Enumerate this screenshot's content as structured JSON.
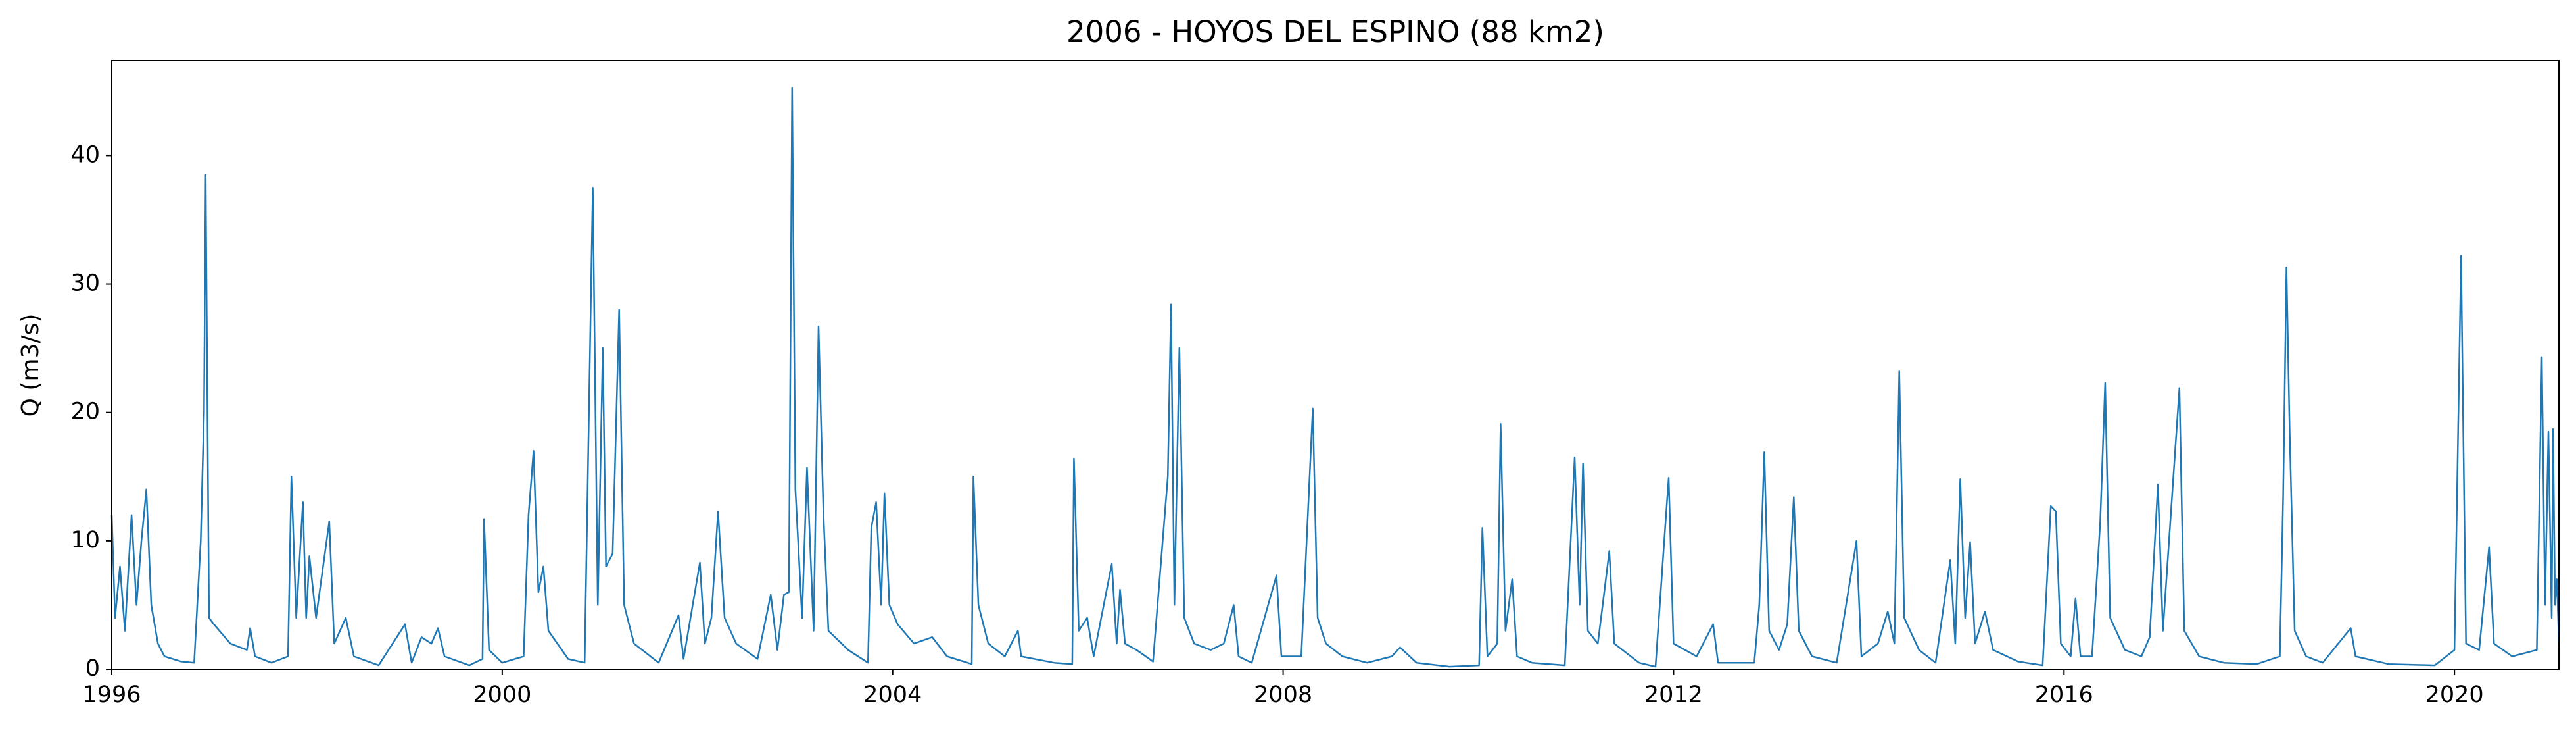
{
  "chart_data": {
    "type": "line",
    "title": "2006 - HOYOS DEL ESPINO (88 km2)",
    "y_label": "Q (m3/s)",
    "color": "#1f77b4",
    "xlim": [
      1996,
      2021.07
    ],
    "xticks": [
      1996,
      2000,
      2004,
      2008,
      2012,
      2016,
      2020
    ],
    "ylim": [
      0,
      47.4
    ],
    "yticks": [
      0,
      10,
      20,
      30,
      40
    ],
    "x": [
      1996,
      1996.034,
      1996.084,
      1996.135,
      1996.203,
      1996.253,
      1996.304,
      1996.354,
      1996.405,
      1996.473,
      1996.54,
      1996.709,
      1996.844,
      1996.911,
      1996.945,
      1996.962,
      1996.996,
      1997.046,
      1997.215,
      1997.384,
      1997.418,
      1997.468,
      1997.637,
      1997.806,
      1997.84,
      1997.89,
      1997.958,
      1997.992,
      1998.025,
      1998.093,
      1998.228,
      1998.279,
      1998.397,
      1998.481,
      1998.734,
      1999.004,
      1999.072,
      1999.173,
      1999.274,
      1999.342,
      1999.409,
      1999.662,
      1999.798,
      1999.814,
      1999.865,
      2000,
      2000.219,
      2000.27,
      2000.321,
      2000.371,
      2000.422,
      2000.473,
      2000.675,
      2000.844,
      2000.928,
      2000.979,
      2001.03,
      2001.063,
      2001.131,
      2001.198,
      2001.249,
      2001.35,
      2001.603,
      2001.806,
      2001.857,
      2002.025,
      2002.076,
      2002.143,
      2002.211,
      2002.278,
      2002.397,
      2002.616,
      2002.751,
      2002.819,
      2002.886,
      2002.937,
      2002.97,
      2003.004,
      2003.072,
      2003.122,
      2003.19,
      2003.241,
      2003.291,
      2003.342,
      2003.544,
      2003.747,
      2003.781,
      2003.831,
      2003.882,
      2003.916,
      2003.966,
      2004.051,
      2004.219,
      2004.405,
      2004.557,
      2004.81,
      2004.827,
      2004.878,
      2004.979,
      2005.148,
      2005.283,
      2005.316,
      2005.654,
      2005.84,
      2005.857,
      2005.907,
      2005.992,
      2006.059,
      2006.245,
      2006.295,
      2006.329,
      2006.38,
      2006.498,
      2006.667,
      2006.819,
      2006.852,
      2006.886,
      2006.937,
      2006.987,
      2007.089,
      2007.257,
      2007.392,
      2007.443,
      2007.494,
      2007.544,
      2007.679,
      2007.932,
      2007.983,
      2008.186,
      2008.304,
      2008.354,
      2008.439,
      2008.608,
      2008.861,
      2009.114,
      2009.198,
      2009.367,
      2009.705,
      2010.008,
      2010.042,
      2010.093,
      2010.194,
      2010.228,
      2010.278,
      2010.346,
      2010.397,
      2010.549,
      2010.886,
      2010.987,
      2011.038,
      2011.072,
      2011.122,
      2011.224,
      2011.274,
      2011.342,
      2011.393,
      2011.646,
      2011.815,
      2011.916,
      2011.95,
      2012,
      2012.236,
      2012.405,
      2012.456,
      2012.827,
      2012.878,
      2012.929,
      2012.979,
      2013.08,
      2013.165,
      2013.232,
      2013.283,
      2013.418,
      2013.671,
      2013.874,
      2013.924,
      2014.093,
      2014.194,
      2014.262,
      2014.312,
      2014.363,
      2014.515,
      2014.684,
      2014.835,
      2014.886,
      2014.937,
      2014.987,
      2015.038,
      2015.089,
      2015.19,
      2015.274,
      2015.527,
      2015.781,
      2015.865,
      2015.916,
      2015.967,
      2016.068,
      2016.118,
      2016.169,
      2016.287,
      2016.371,
      2016.422,
      2016.473,
      2016.624,
      2016.793,
      2016.878,
      2016.962,
      2017.013,
      2017.182,
      2017.232,
      2017.384,
      2017.637,
      2017.975,
      2018.211,
      2018.245,
      2018.279,
      2018.312,
      2018.363,
      2018.481,
      2018.65,
      2018.937,
      2018.987,
      2019.325,
      2019.798,
      2020,
      2020.068,
      2020.118,
      2020.253,
      2020.355,
      2020.405,
      2020.591,
      2020.844,
      2020.895,
      2020.928,
      2020.962,
      2020.996,
      2021.01,
      2021.03,
      2021.05,
      2021.07
    ],
    "values": [
      12,
      4,
      8,
      3,
      12,
      5,
      10,
      14,
      5,
      2,
      1,
      0.6,
      0.5,
      10,
      20,
      38.5,
      4,
      3.5,
      2,
      1.5,
      3.2,
      1,
      0.5,
      1,
      15,
      4,
      13,
      4,
      8.8,
      4,
      11.5,
      2,
      4,
      1,
      0.3,
      3.5,
      0.5,
      2.5,
      2,
      3.2,
      1,
      0.3,
      0.8,
      11.7,
      1.5,
      0.5,
      1,
      12,
      17,
      6,
      8,
      3,
      0.8,
      0.5,
      37.5,
      5,
      25,
      8,
      9,
      28,
      5,
      2,
      0.5,
      4.2,
      0.8,
      8.3,
      2,
      4,
      12.3,
      4,
      2,
      0.8,
      5.8,
      1.5,
      5.8,
      6,
      45.3,
      14,
      4,
      15.7,
      3,
      26.7,
      12,
      3,
      1.5,
      0.5,
      11,
      13,
      5,
      13.7,
      5,
      3.5,
      2,
      2.5,
      1,
      0.4,
      15,
      5,
      2,
      1,
      3,
      1,
      0.5,
      0.4,
      16.4,
      3,
      4,
      1,
      8.2,
      2,
      6.2,
      2,
      1.5,
      0.6,
      15,
      28.4,
      5,
      25,
      4,
      2,
      1.5,
      2,
      3.5,
      5,
      1,
      0.5,
      7.3,
      1,
      1,
      20.3,
      4,
      2,
      1,
      0.5,
      1,
      1.7,
      0.5,
      0.2,
      0.3,
      11,
      1,
      2,
      19.1,
      3,
      7,
      1,
      0.5,
      0.3,
      16.5,
      5,
      16,
      3,
      2,
      5,
      9.2,
      2,
      0.5,
      0.2,
      11.3,
      14.9,
      2,
      1,
      3.5,
      0.5,
      0.5,
      5,
      16.9,
      3,
      1.5,
      3.5,
      13.4,
      3,
      1,
      0.5,
      10,
      1,
      2,
      4.5,
      2,
      23.2,
      4,
      1.5,
      0.5,
      8.5,
      2,
      14.8,
      4,
      9.9,
      2,
      4.5,
      1.5,
      0.6,
      0.3,
      12.7,
      12.3,
      2,
      1,
      5.5,
      1,
      1,
      11.5,
      22.3,
      4,
      1.5,
      1,
      2.5,
      14.4,
      3,
      21.9,
      3,
      1,
      0.5,
      0.4,
      1,
      13.5,
      31.3,
      18.4,
      3,
      1,
      0.5,
      3.2,
      1,
      0.4,
      0.3,
      1.5,
      32.2,
      2,
      1.5,
      9.5,
      2,
      1,
      1.5,
      24.3,
      5,
      18.5,
      4,
      18.7,
      5,
      7,
      2
    ]
  }
}
